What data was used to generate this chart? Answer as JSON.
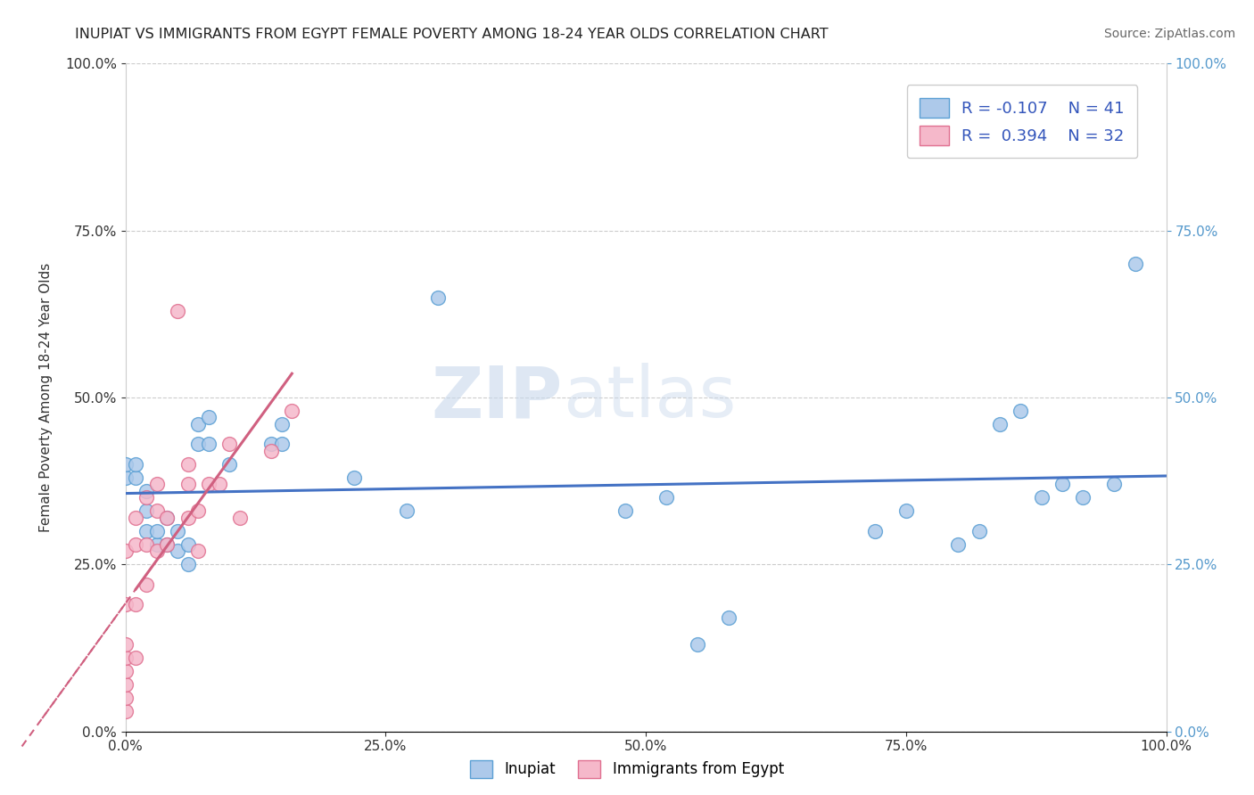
{
  "title": "INUPIAT VS IMMIGRANTS FROM EGYPT FEMALE POVERTY AMONG 18-24 YEAR OLDS CORRELATION CHART",
  "source": "Source: ZipAtlas.com",
  "ylabel": "Female Poverty Among 18-24 Year Olds",
  "xlim": [
    0.0,
    1.0
  ],
  "ylim": [
    0.0,
    1.0
  ],
  "xtick_labels": [
    "0.0%",
    "25.0%",
    "50.0%",
    "75.0%",
    "100.0%"
  ],
  "xtick_vals": [
    0.0,
    0.25,
    0.5,
    0.75,
    1.0
  ],
  "ytick_vals": [
    0.0,
    0.25,
    0.5,
    0.75,
    1.0
  ],
  "ytick_labels": [
    "0.0%",
    "25.0%",
    "50.0%",
    "75.0%",
    "100.0%"
  ],
  "inupiat_color": "#adc9ea",
  "egypt_color": "#f5b8ca",
  "inupiat_edge": "#5a9fd4",
  "egypt_edge": "#e07090",
  "trend_inupiat_color": "#4472c4",
  "trend_egypt_color": "#d06080",
  "legend_R_inupiat": "R = -0.107",
  "legend_N_inupiat": "N = 41",
  "legend_R_egypt": "R =  0.394",
  "legend_N_egypt": "N = 32",
  "watermark_zip": "ZIP",
  "watermark_atlas": "atlas",
  "inupiat_x": [
    0.0,
    0.0,
    0.01,
    0.01,
    0.02,
    0.02,
    0.02,
    0.03,
    0.03,
    0.04,
    0.04,
    0.05,
    0.05,
    0.06,
    0.06,
    0.07,
    0.07,
    0.08,
    0.08,
    0.1,
    0.14,
    0.15,
    0.15,
    0.22,
    0.27,
    0.3,
    0.48,
    0.52,
    0.55,
    0.58,
    0.72,
    0.75,
    0.8,
    0.82,
    0.84,
    0.86,
    0.88,
    0.9,
    0.92,
    0.95,
    0.97
  ],
  "inupiat_y": [
    0.38,
    0.4,
    0.38,
    0.4,
    0.3,
    0.33,
    0.36,
    0.28,
    0.3,
    0.28,
    0.32,
    0.27,
    0.3,
    0.25,
    0.28,
    0.43,
    0.46,
    0.43,
    0.47,
    0.4,
    0.43,
    0.43,
    0.46,
    0.38,
    0.33,
    0.65,
    0.33,
    0.35,
    0.13,
    0.17,
    0.3,
    0.33,
    0.28,
    0.3,
    0.46,
    0.48,
    0.35,
    0.37,
    0.35,
    0.37,
    0.7
  ],
  "egypt_x": [
    0.0,
    0.0,
    0.0,
    0.0,
    0.0,
    0.0,
    0.0,
    0.0,
    0.01,
    0.01,
    0.01,
    0.01,
    0.02,
    0.02,
    0.02,
    0.03,
    0.03,
    0.03,
    0.04,
    0.04,
    0.05,
    0.06,
    0.06,
    0.06,
    0.07,
    0.07,
    0.08,
    0.09,
    0.1,
    0.11,
    0.14,
    0.16
  ],
  "egypt_y": [
    0.03,
    0.05,
    0.07,
    0.09,
    0.11,
    0.13,
    0.19,
    0.27,
    0.11,
    0.19,
    0.28,
    0.32,
    0.22,
    0.28,
    0.35,
    0.27,
    0.33,
    0.37,
    0.28,
    0.32,
    0.63,
    0.32,
    0.37,
    0.4,
    0.27,
    0.33,
    0.37,
    0.37,
    0.43,
    0.32,
    0.42,
    0.48
  ],
  "background_color": "#ffffff",
  "grid_color": "#cccccc"
}
